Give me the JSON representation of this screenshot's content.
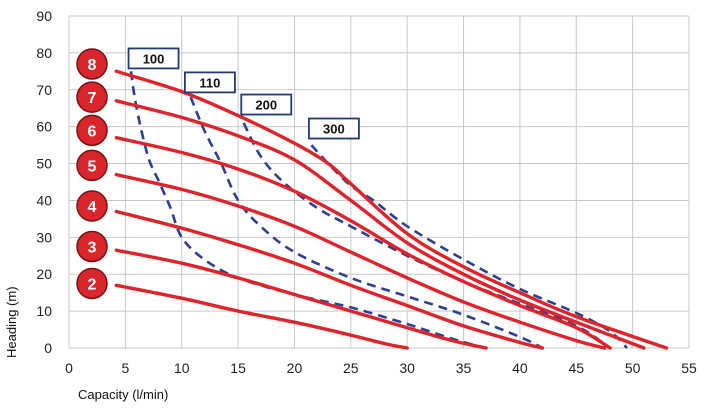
{
  "chart_data": {
    "type": "line",
    "xlabel": "Capacity (l/min)",
    "ylabel": "Heading (m)",
    "xlim": [
      0,
      55
    ],
    "ylim": [
      0,
      90
    ],
    "x_ticks": [
      0,
      5,
      10,
      15,
      20,
      25,
      30,
      35,
      40,
      45,
      50,
      55
    ],
    "y_ticks": [
      0,
      10,
      20,
      30,
      40,
      50,
      60,
      70,
      80,
      90
    ],
    "grid": true,
    "colors": {
      "curve": "#e0232a",
      "efficiency": "#2e3f8f",
      "grid": "#c8c8c8",
      "badge": "#d9262c",
      "box_border": "#1f3a7a"
    },
    "series": [
      {
        "name": "2",
        "points": [
          [
            4.2,
            17
          ],
          [
            10,
            13.5
          ],
          [
            15,
            10
          ],
          [
            20,
            7
          ],
          [
            25,
            3.5
          ],
          [
            28,
            1.2
          ],
          [
            30,
            0
          ]
        ]
      },
      {
        "name": "3",
        "points": [
          [
            4.2,
            26.5
          ],
          [
            10,
            23
          ],
          [
            15,
            19
          ],
          [
            20,
            14.5
          ],
          [
            25,
            10
          ],
          [
            30,
            5.5
          ],
          [
            34,
            2
          ],
          [
            37,
            0
          ]
        ]
      },
      {
        "name": "4",
        "points": [
          [
            4.2,
            37
          ],
          [
            10,
            32.5
          ],
          [
            15,
            28
          ],
          [
            20,
            23
          ],
          [
            25,
            17
          ],
          [
            30,
            11.5
          ],
          [
            35,
            6
          ],
          [
            40,
            1.5
          ],
          [
            42,
            0
          ]
        ]
      },
      {
        "name": "5",
        "points": [
          [
            4.2,
            47
          ],
          [
            10,
            43
          ],
          [
            15,
            38.5
          ],
          [
            20,
            33
          ],
          [
            25,
            26
          ],
          [
            30,
            19
          ],
          [
            35,
            12.5
          ],
          [
            40,
            7
          ],
          [
            45,
            2
          ],
          [
            47.5,
            0
          ]
        ]
      },
      {
        "name": "6",
        "points": [
          [
            4.2,
            57
          ],
          [
            10,
            53
          ],
          [
            15,
            48.5
          ],
          [
            20,
            42.5
          ],
          [
            25,
            34.5
          ],
          [
            30,
            25.5
          ],
          [
            35,
            18
          ],
          [
            40,
            11.5
          ],
          [
            45,
            5.5
          ],
          [
            48,
            0
          ]
        ]
      },
      {
        "name": "7",
        "points": [
          [
            4.2,
            67
          ],
          [
            10,
            62.5
          ],
          [
            15,
            57.5
          ],
          [
            20,
            51
          ],
          [
            25,
            40
          ],
          [
            30,
            28.5
          ],
          [
            35,
            20
          ],
          [
            40,
            13
          ],
          [
            45,
            7
          ],
          [
            51,
            0
          ]
        ]
      },
      {
        "name": "8",
        "points": [
          [
            4.2,
            75
          ],
          [
            10,
            69.5
          ],
          [
            15,
            63
          ],
          [
            20,
            55.5
          ],
          [
            23,
            50
          ],
          [
            25,
            44.5
          ],
          [
            30,
            31
          ],
          [
            35,
            22
          ],
          [
            40,
            15
          ],
          [
            45,
            8.5
          ],
          [
            53,
            0
          ]
        ]
      }
    ],
    "efficiency_curves": [
      {
        "label": "100",
        "points": [
          [
            5.5,
            75
          ],
          [
            6,
            65
          ],
          [
            7,
            52
          ],
          [
            8,
            45
          ],
          [
            9,
            38
          ],
          [
            10,
            30
          ],
          [
            12,
            24
          ],
          [
            15,
            19
          ],
          [
            20,
            14.5
          ],
          [
            25,
            11
          ],
          [
            30,
            6.5
          ],
          [
            34,
            2.5
          ],
          [
            37,
            0
          ]
        ]
      },
      {
        "label": "110",
        "points": [
          [
            10.8,
            68
          ],
          [
            12,
            59
          ],
          [
            13.5,
            50
          ],
          [
            15,
            40
          ],
          [
            17,
            33
          ],
          [
            20,
            26
          ],
          [
            25,
            19
          ],
          [
            30,
            14
          ],
          [
            35,
            9
          ],
          [
            40,
            3
          ],
          [
            42,
            0
          ]
        ]
      },
      {
        "label": "200",
        "points": [
          [
            15.5,
            61
          ],
          [
            17,
            52
          ],
          [
            19,
            45
          ],
          [
            22,
            38
          ],
          [
            25,
            33
          ],
          [
            30,
            25
          ],
          [
            35,
            18
          ],
          [
            40,
            12
          ],
          [
            45,
            6
          ],
          [
            48,
            0
          ]
        ]
      },
      {
        "label": "300",
        "points": [
          [
            21.5,
            55
          ],
          [
            23,
            50
          ],
          [
            25,
            44
          ],
          [
            27,
            40
          ],
          [
            30,
            33
          ],
          [
            35,
            24
          ],
          [
            40,
            16
          ],
          [
            45,
            9.5
          ],
          [
            48,
            4.5
          ],
          [
            49.5,
            0
          ]
        ]
      }
    ],
    "stage_badges": [
      "8",
      "7",
      "6",
      "5",
      "4",
      "3",
      "2"
    ],
    "badge_levels": [
      77,
      68,
      59,
      49.5,
      38.5,
      27.5,
      17.5
    ],
    "box_labels": [
      {
        "label": "100",
        "x": 7.5,
        "y": 78.5
      },
      {
        "label": "110",
        "x": 12.5,
        "y": 72
      },
      {
        "label": "200",
        "x": 17.5,
        "y": 66
      },
      {
        "label": "300",
        "x": 23.5,
        "y": 59.5
      }
    ]
  }
}
